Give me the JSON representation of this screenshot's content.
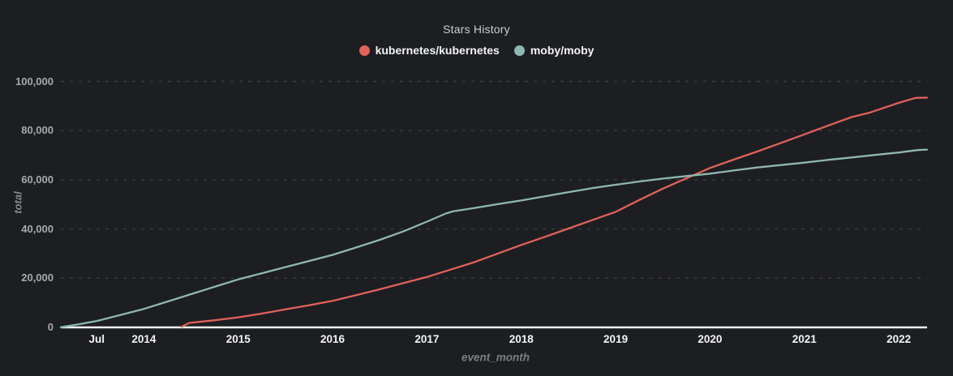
{
  "chart_data": {
    "type": "line",
    "title": "Stars History",
    "xlabel": "event_month",
    "ylabel": "total",
    "x_domain": [
      2013.12,
      2022.3
    ],
    "ylim": [
      0,
      100000
    ],
    "grid": "horizontal-dashed",
    "legend_position": "top-center",
    "colors": {
      "background": "#1d1e21",
      "grid_line": "#3a3b3f",
      "axis_line": "#eef0f2",
      "title_text": "#ccced3",
      "legend_text": "#f3f4f6",
      "y_tick_text": "#a6a9b0",
      "x_tick_text": "#f3f4f6",
      "axis_title_text": "#85888e"
    },
    "y_ticks": [
      0,
      20000,
      40000,
      60000,
      80000,
      100000
    ],
    "x_ticks": [
      {
        "label": "Jul",
        "year": 2013.5
      },
      {
        "label": "2014",
        "year": 2014
      },
      {
        "label": "2015",
        "year": 2015
      },
      {
        "label": "2016",
        "year": 2016
      },
      {
        "label": "2017",
        "year": 2017
      },
      {
        "label": "2018",
        "year": 2018
      },
      {
        "label": "2019",
        "year": 2019
      },
      {
        "label": "2020",
        "year": 2020
      },
      {
        "label": "2021",
        "year": 2021
      },
      {
        "label": "2022",
        "year": 2022
      }
    ],
    "series": [
      {
        "name": "kubernetes/kubernetes",
        "color": "#e0625a",
        "points": [
          [
            2014.4,
            300
          ],
          [
            2014.48,
            1800
          ],
          [
            2014.75,
            2900
          ],
          [
            2015.0,
            4100
          ],
          [
            2015.25,
            5600
          ],
          [
            2015.5,
            7300
          ],
          [
            2015.75,
            9000
          ],
          [
            2016.0,
            10800
          ],
          [
            2016.25,
            13100
          ],
          [
            2016.5,
            15500
          ],
          [
            2016.75,
            18000
          ],
          [
            2017.0,
            20500
          ],
          [
            2017.25,
            23500
          ],
          [
            2017.5,
            26500
          ],
          [
            2017.75,
            30000
          ],
          [
            2018.0,
            33500
          ],
          [
            2018.25,
            36800
          ],
          [
            2018.5,
            40200
          ],
          [
            2018.75,
            43600
          ],
          [
            2019.0,
            47000
          ],
          [
            2019.25,
            51800
          ],
          [
            2019.5,
            56400
          ],
          [
            2019.75,
            60600
          ],
          [
            2020.0,
            64800
          ],
          [
            2020.25,
            68200
          ],
          [
            2020.5,
            71500
          ],
          [
            2020.75,
            75000
          ],
          [
            2021.0,
            78500
          ],
          [
            2021.25,
            82000
          ],
          [
            2021.5,
            85500
          ],
          [
            2021.7,
            87400
          ],
          [
            2022.0,
            91300
          ],
          [
            2022.18,
            93300
          ],
          [
            2022.3,
            93400
          ]
        ]
      },
      {
        "name": "moby/moby",
        "color": "#90b6b2",
        "points": [
          [
            2013.12,
            100
          ],
          [
            2013.3,
            1200
          ],
          [
            2013.5,
            2600
          ],
          [
            2013.75,
            5000
          ],
          [
            2014.0,
            7500
          ],
          [
            2014.25,
            10500
          ],
          [
            2014.5,
            13500
          ],
          [
            2014.75,
            16500
          ],
          [
            2015.0,
            19500
          ],
          [
            2015.25,
            22000
          ],
          [
            2015.5,
            24500
          ],
          [
            2015.75,
            27000
          ],
          [
            2016.0,
            29500
          ],
          [
            2016.25,
            32500
          ],
          [
            2016.5,
            35600
          ],
          [
            2016.75,
            39000
          ],
          [
            2017.0,
            43000
          ],
          [
            2017.2,
            46300
          ],
          [
            2017.28,
            47200
          ],
          [
            2017.5,
            48500
          ],
          [
            2017.75,
            50100
          ],
          [
            2018.0,
            51600
          ],
          [
            2018.25,
            53300
          ],
          [
            2018.5,
            55000
          ],
          [
            2018.75,
            56600
          ],
          [
            2019.0,
            58000
          ],
          [
            2019.25,
            59300
          ],
          [
            2019.5,
            60500
          ],
          [
            2019.75,
            61500
          ],
          [
            2020.0,
            62500
          ],
          [
            2020.25,
            63800
          ],
          [
            2020.5,
            65000
          ],
          [
            2020.75,
            66000
          ],
          [
            2021.0,
            67000
          ],
          [
            2021.25,
            68100
          ],
          [
            2021.5,
            69100
          ],
          [
            2021.75,
            70100
          ],
          [
            2022.0,
            71100
          ],
          [
            2022.2,
            72100
          ],
          [
            2022.3,
            72300
          ]
        ]
      }
    ]
  }
}
